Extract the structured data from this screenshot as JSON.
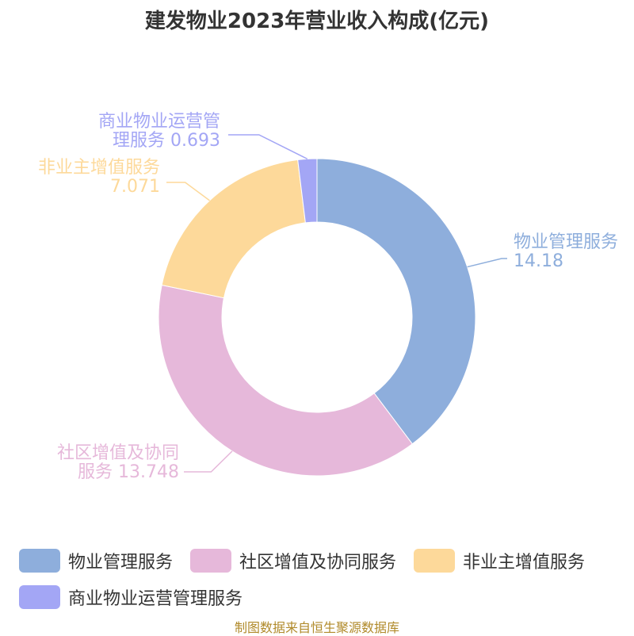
{
  "chart_data": {
    "type": "pie",
    "title": "建发物业2023年营业收入构成(亿元)",
    "donut": true,
    "slices": [
      {
        "label": "物业管理服务",
        "value": 14.18,
        "value_text": "14.18",
        "label_lines": [
          "物业管理服务",
          "14.18"
        ],
        "color": "#8eaedc"
      },
      {
        "label": "社区增值及协同服务",
        "value": 13.748,
        "value_text": "13.748",
        "label_lines": [
          "社区增值及协同",
          "服务 13.748"
        ],
        "color": "#e6b8da"
      },
      {
        "label": "非业主增值服务",
        "value": 7.071,
        "value_text": "7.071",
        "label_lines": [
          "非业主增值服务",
          "7.071"
        ],
        "color": "#fdd99a"
      },
      {
        "label": "商业物业运营管理服务",
        "value": 0.693,
        "value_text": "0.693",
        "label_lines": [
          "商业物业运营管",
          "理服务 0.693"
        ],
        "color": "#a3a6f5"
      }
    ],
    "legend": {
      "position": "bottom",
      "rows": [
        [
          "物业管理服务",
          "社区增值及协同服务",
          "非业主增值服务"
        ],
        [
          "商业物业运营管理服务"
        ]
      ]
    }
  },
  "source": "制图数据来自恒生聚源数据库"
}
